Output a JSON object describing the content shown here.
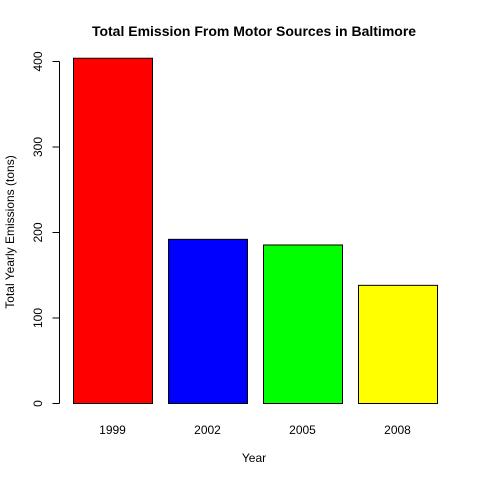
{
  "chart_data": {
    "type": "bar",
    "title": "Total Emission From Motor Sources in Baltimore",
    "xlabel": "Year",
    "ylabel": "Total Yearly Emissions (tons)",
    "categories": [
      "1999",
      "2002",
      "2005",
      "2008"
    ],
    "values": [
      403.8,
      192.0,
      185.4,
      138.2
    ],
    "colors": [
      "#ff0000",
      "#0000ff",
      "#00ff00",
      "#ffff00"
    ],
    "ylim": [
      0,
      400
    ],
    "yticks": [
      0,
      100,
      200,
      300,
      400
    ],
    "grid": false,
    "legend": "none"
  }
}
